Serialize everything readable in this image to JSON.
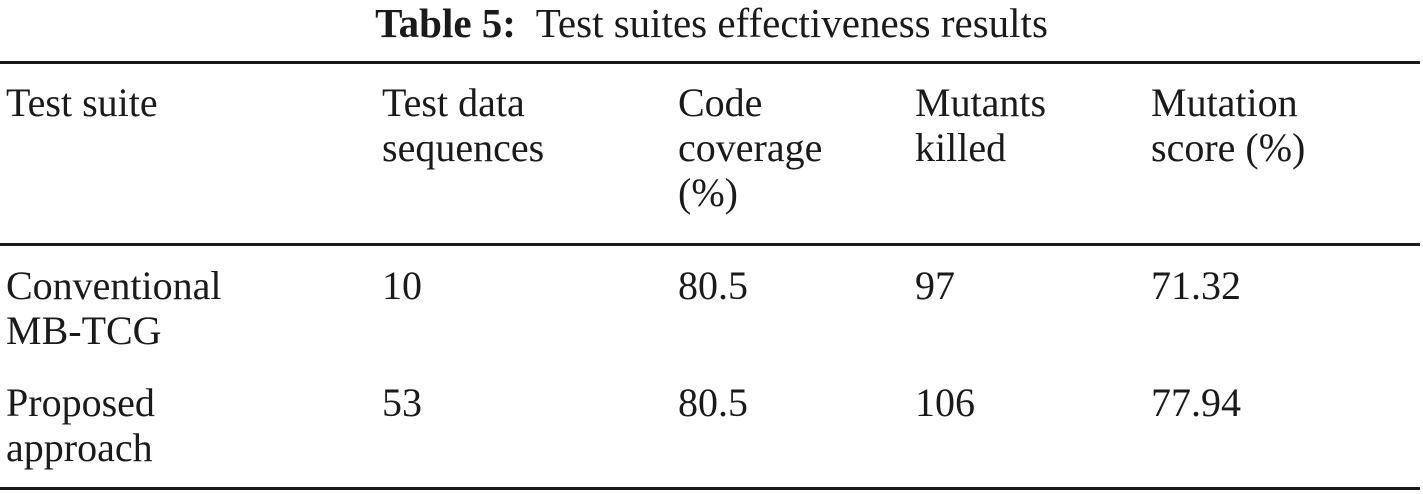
{
  "caption": {
    "label": "Table 5:",
    "text": "Test suites effectiveness results"
  },
  "table": {
    "headers": [
      [
        "Test suite"
      ],
      [
        "Test data",
        "sequences"
      ],
      [
        "Code",
        "coverage",
        "(%)"
      ],
      [
        "Mutants",
        "killed"
      ],
      [
        "Mutation",
        "score (%)"
      ]
    ],
    "rows": [
      {
        "suite": [
          "Conventional",
          "MB-TCG"
        ],
        "test_data_sequences": "10",
        "code_coverage": "80.5",
        "mutants_killed": "97",
        "mutation_score": "71.32"
      },
      {
        "suite": [
          "Proposed",
          "approach"
        ],
        "test_data_sequences": "53",
        "code_coverage": "80.5",
        "mutants_killed": "106",
        "mutation_score": "77.94"
      }
    ]
  }
}
